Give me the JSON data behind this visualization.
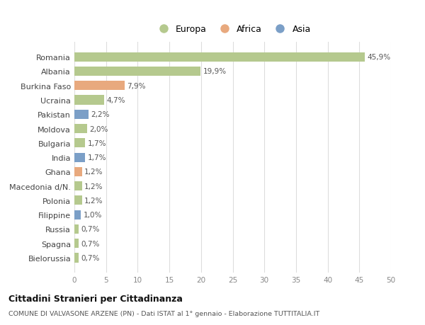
{
  "countries": [
    "Romania",
    "Albania",
    "Burkina Faso",
    "Ucraina",
    "Pakistan",
    "Moldova",
    "Bulgaria",
    "India",
    "Ghana",
    "Macedonia d/N.",
    "Polonia",
    "Filippine",
    "Russia",
    "Spagna",
    "Bielorussia"
  ],
  "values": [
    45.9,
    19.9,
    7.9,
    4.7,
    2.2,
    2.0,
    1.7,
    1.7,
    1.2,
    1.2,
    1.2,
    1.0,
    0.7,
    0.7,
    0.7
  ],
  "labels": [
    "45,9%",
    "19,9%",
    "7,9%",
    "4,7%",
    "2,2%",
    "2,0%",
    "1,7%",
    "1,7%",
    "1,2%",
    "1,2%",
    "1,2%",
    "1,0%",
    "0,7%",
    "0,7%",
    "0,7%"
  ],
  "continents": [
    "Europa",
    "Europa",
    "Africa",
    "Europa",
    "Asia",
    "Europa",
    "Europa",
    "Asia",
    "Africa",
    "Europa",
    "Europa",
    "Asia",
    "Europa",
    "Europa",
    "Europa"
  ],
  "colors": {
    "Europa": "#b5c98e",
    "Africa": "#e8a97e",
    "Asia": "#7b9fc7"
  },
  "bg_color": "#ffffff",
  "grid_color": "#dddddd",
  "title": "Cittadini Stranieri per Cittadinanza",
  "subtitle": "COMUNE DI VALVASONE ARZENE (PN) - Dati ISTAT al 1° gennaio - Elaborazione TUTTITALIA.IT",
  "xlim": [
    0,
    50
  ],
  "xticks": [
    0,
    5,
    10,
    15,
    20,
    25,
    30,
    35,
    40,
    45,
    50
  ]
}
